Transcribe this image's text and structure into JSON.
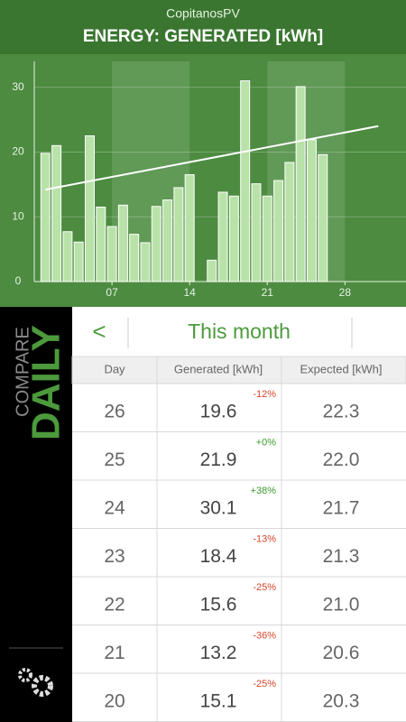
{
  "app_name": "CopitanosPV",
  "chart_data": {
    "type": "bar",
    "title": "ENERGY: GENERATED [kWh]",
    "x": [
      1,
      2,
      3,
      4,
      5,
      6,
      7,
      8,
      9,
      10,
      11,
      12,
      13,
      14,
      15,
      16,
      17,
      18,
      19,
      20,
      21,
      22,
      23,
      24,
      25,
      26,
      27,
      28,
      29,
      30,
      31
    ],
    "series": [
      {
        "color": "#b9e2a9",
        "values": [
          19.8,
          21,
          7.7,
          6.1,
          22.5,
          11.5,
          8.5,
          11.8,
          7.3,
          6,
          11.6,
          12.6,
          14.5,
          16.5,
          null,
          3.3,
          13.8,
          13.2,
          31,
          15.1,
          13.2,
          15.6,
          18.4,
          30.1,
          21.9,
          19.6,
          null,
          null,
          null,
          null,
          null
        ]
      },
      {
        "type": "line",
        "color": "#ffffff",
        "x": [
          1,
          31
        ],
        "values": [
          14.2,
          24.0
        ]
      }
    ],
    "xlim": [
      0,
      33.5
    ],
    "ylim": [
      0,
      34
    ],
    "xticks": [
      {
        "value": 7,
        "label": "07"
      },
      {
        "value": 14,
        "label": "14"
      },
      {
        "value": 21,
        "label": "21"
      },
      {
        "value": 28,
        "label": "28"
      }
    ],
    "yticks": [
      0,
      10,
      20,
      30
    ],
    "grid": true
  },
  "sidebar": {
    "compare": "COMPARE",
    "mode": "DAILY"
  },
  "nav": {
    "back": "<",
    "period": "This month"
  },
  "table": {
    "headers": [
      "Day",
      "Generated [kWh]",
      "Expected [kWh]"
    ],
    "rows": [
      [
        "26",
        "19.6",
        "-12%",
        "22.3"
      ],
      [
        "25",
        "21.9",
        "+0%",
        "22.0"
      ],
      [
        "24",
        "30.1",
        "+38%",
        "21.7"
      ],
      [
        "23",
        "18.4",
        "-13%",
        "21.3"
      ],
      [
        "22",
        "15.6",
        "-25%",
        "21.0"
      ],
      [
        "21",
        "13.2",
        "-36%",
        "20.6"
      ],
      [
        "20",
        "15.1",
        "-25%",
        "20.3"
      ]
    ]
  }
}
